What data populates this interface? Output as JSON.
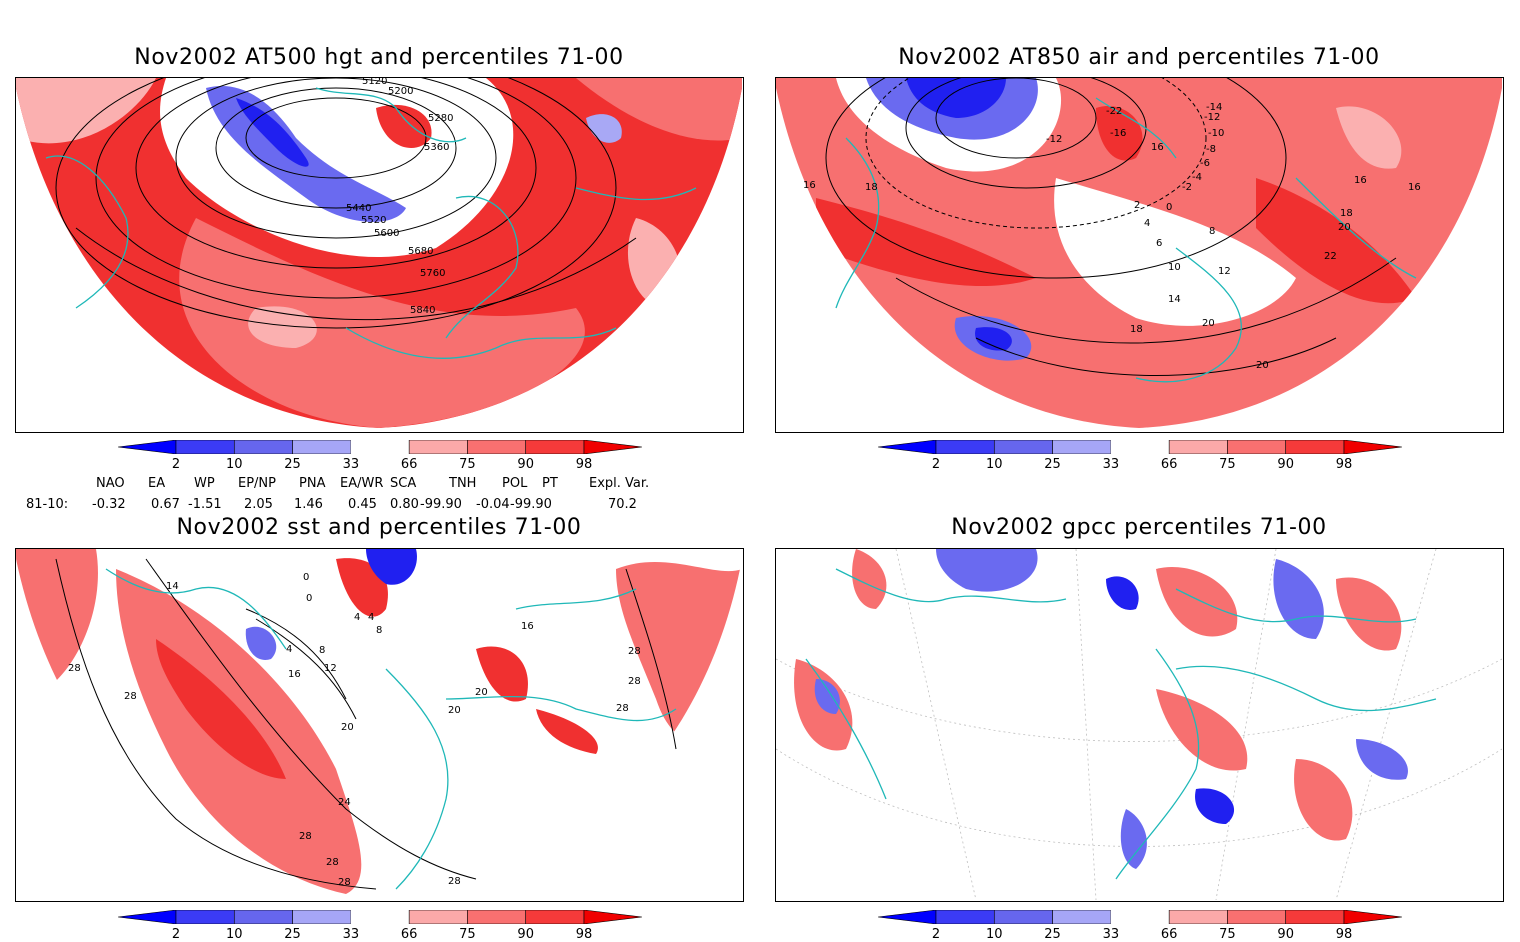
{
  "panels": [
    {
      "id": "hgt500",
      "title": "Nov2002 AT500 hgt and percentiles 71-00",
      "contour_labels": [
        "5120",
        "5200",
        "5280",
        "5360",
        "5440",
        "5520",
        "5600",
        "5680",
        "5760",
        "5840"
      ]
    },
    {
      "id": "air850",
      "title": "Nov2002 AT850 air and percentiles 71-00",
      "contour_labels": [
        "-22",
        "-16",
        "-12",
        "-14",
        "-12",
        "-10",
        "-8",
        "-6",
        "-4",
        "-2",
        "0",
        "2",
        "4",
        "6",
        "8",
        "10",
        "12",
        "14",
        "16",
        "16",
        "16",
        "16",
        "18",
        "18",
        "20",
        "20",
        "20",
        "22",
        "18"
      ]
    },
    {
      "id": "sst",
      "title": "Nov2002 sst and percentiles 71-00",
      "contour_labels": [
        "14",
        "28",
        "28",
        "0",
        "0",
        "4",
        "4",
        "8",
        "4",
        "8",
        "12",
        "16",
        "20",
        "20",
        "20",
        "16",
        "28",
        "28",
        "28",
        "24",
        "28",
        "28",
        "28",
        "28"
      ]
    },
    {
      "id": "gpcc",
      "title": "Nov2002 gpcc percentiles 71-00",
      "contour_labels": []
    }
  ],
  "colorbar": {
    "labels": [
      "2",
      "10",
      "25",
      "33",
      "66",
      "75",
      "90",
      "98"
    ],
    "colors": [
      "#0000ff",
      "#3b3bf5",
      "#6666ee",
      "#a6a6f7",
      "#ffffff",
      "#fba9a9",
      "#f97070",
      "#f53a3a",
      "#f00000"
    ]
  },
  "teleconnections": {
    "row_label": "81-10:",
    "headers": [
      "NAO",
      "EA",
      "WP",
      "EP/NP",
      "PNA",
      "EA/WR",
      "SCA",
      "TNH",
      "POL",
      "PT",
      "Expl. Var."
    ],
    "values": [
      "-0.32",
      "0.67",
      "-1.51",
      "2.05",
      "1.46",
      "0.45",
      "0.80",
      "-99.90",
      "-0.04",
      "-99.90",
      "70.2"
    ]
  },
  "colors": {
    "land_outline": "#1fb8b8",
    "red_strong": "#f03030",
    "red_mid": "#f77070",
    "red_light": "#fbb0b0",
    "blue_strong": "#2020f0",
    "blue_mid": "#6a6af0",
    "blue_light": "#a8a8f5"
  }
}
